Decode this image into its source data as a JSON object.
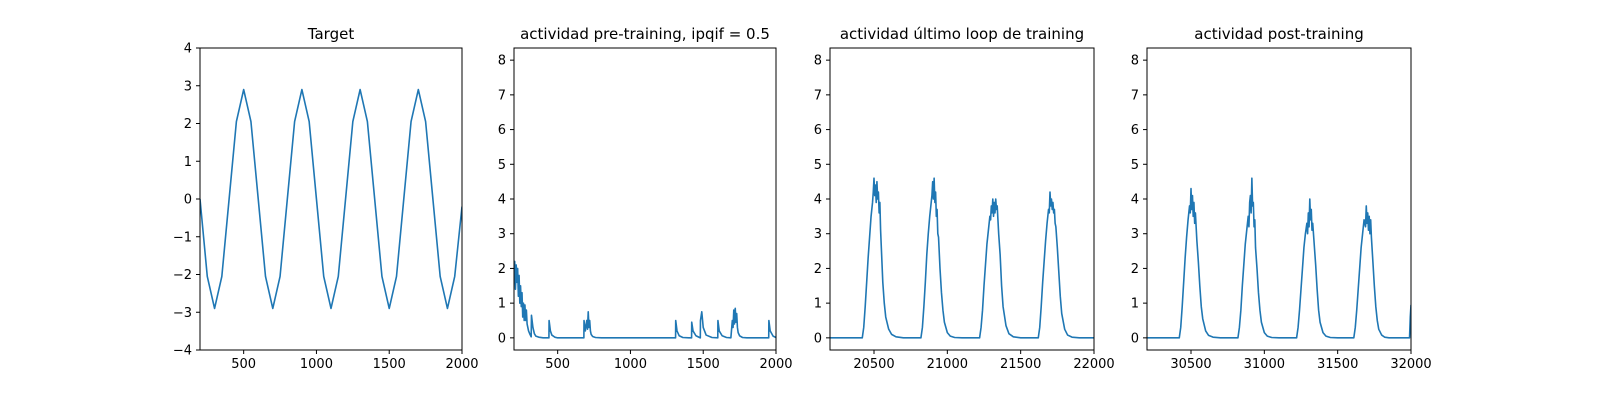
{
  "chart_data": [
    {
      "type": "line",
      "title": "Target",
      "xlabel": "",
      "ylabel": "",
      "xlim": [
        200,
        2000
      ],
      "ylim": [
        -4,
        4
      ],
      "xticks": [
        500,
        1000,
        1500,
        2000
      ],
      "xtick_labels": [
        "500",
        "1000",
        "1500",
        "2000"
      ],
      "yticks": [
        -4,
        -3,
        -2,
        -1,
        0,
        1,
        2,
        3,
        4
      ],
      "ytick_labels": [
        "−4",
        "−3",
        "−2",
        "−1",
        "0",
        "1",
        "2",
        "3",
        "4"
      ],
      "grid": false,
      "color": "#1f77b4",
      "series": [
        {
          "x": [
            200,
            250,
            300,
            350,
            400,
            450,
            500,
            550,
            600,
            650,
            700,
            750,
            800,
            850,
            900,
            950,
            1000,
            1050,
            1100,
            1150,
            1200,
            1250,
            1300,
            1350,
            1400,
            1450,
            1500,
            1550,
            1600,
            1650,
            1700,
            1750,
            1800,
            1850,
            1900,
            1950,
            2000
          ],
          "y": [
            0.0,
            -2.05,
            -2.9,
            -2.05,
            0.0,
            2.05,
            2.9,
            2.05,
            0.0,
            -2.05,
            -2.9,
            -2.05,
            0.0,
            2.05,
            2.9,
            2.05,
            0.0,
            -2.05,
            -2.9,
            -2.05,
            0.0,
            2.05,
            2.9,
            2.05,
            0.0,
            -2.05,
            -2.9,
            -2.05,
            0.0,
            2.05,
            2.9,
            2.05,
            0.0,
            -2.05,
            -2.9,
            -2.05,
            -0.2
          ]
        }
      ]
    },
    {
      "type": "line",
      "title": "actividad pre-training, ipqif = 0.5",
      "xlabel": "",
      "ylabel": "",
      "xlim": [
        200,
        2000
      ],
      "ylim": [
        -0.35,
        8.35
      ],
      "xticks": [
        500,
        1000,
        1500,
        2000
      ],
      "xtick_labels": [
        "500",
        "1000",
        "1500",
        "2000"
      ],
      "yticks": [
        0,
        1,
        2,
        3,
        4,
        5,
        6,
        7,
        8
      ],
      "ytick_labels": [
        "0",
        "1",
        "2",
        "3",
        "4",
        "5",
        "6",
        "7",
        "8"
      ],
      "grid": false,
      "color": "#1f77b4",
      "series": [
        {
          "x": [
            200,
            205,
            210,
            215,
            220,
            225,
            230,
            235,
            240,
            245,
            250,
            255,
            260,
            265,
            270,
            275,
            280,
            285,
            290,
            300,
            310,
            318,
            320,
            330,
            340,
            350,
            370,
            400,
            440,
            441,
            450,
            460,
            480,
            500,
            600,
            680,
            681,
            690,
            700,
            705,
            710,
            715,
            720,
            725,
            730,
            740,
            760,
            800,
            1000,
            1200,
            1310,
            1311,
            1320,
            1335,
            1360,
            1400,
            1420,
            1421,
            1430,
            1450,
            1480,
            1481,
            1490,
            1500,
            1520,
            1560,
            1600,
            1601,
            1610,
            1630,
            1660,
            1690,
            1700,
            1705,
            1710,
            1715,
            1720,
            1725,
            1730,
            1735,
            1740,
            1750,
            1770,
            1800,
            1900,
            1950,
            1951,
            1960,
            1980,
            2000
          ],
          "y": [
            1.7,
            2.2,
            1.4,
            2.1,
            1.6,
            2.0,
            1.2,
            1.8,
            1.0,
            1.5,
            0.9,
            1.3,
            0.6,
            1.0,
            0.5,
            0.95,
            0.5,
            0.8,
            0.4,
            0.2,
            0.1,
            0.03,
            0.65,
            0.3,
            0.12,
            0.05,
            0.02,
            0.0,
            0.0,
            0.5,
            0.2,
            0.08,
            0.02,
            0.0,
            0.0,
            0.0,
            0.5,
            0.2,
            0.5,
            0.25,
            0.75,
            0.3,
            0.5,
            0.2,
            0.1,
            0.04,
            0.01,
            0.0,
            0.0,
            0.0,
            0.0,
            0.5,
            0.2,
            0.06,
            0.01,
            0.0,
            0.0,
            0.45,
            0.2,
            0.06,
            0.0,
            0.5,
            0.75,
            0.3,
            0.08,
            0.01,
            0.0,
            0.5,
            0.2,
            0.06,
            0.01,
            0.0,
            0.5,
            0.3,
            0.8,
            0.4,
            0.85,
            0.45,
            0.7,
            0.3,
            0.15,
            0.06,
            0.01,
            0.0,
            0.0,
            0.0,
            0.5,
            0.2,
            0.05,
            0.01
          ]
        }
      ]
    },
    {
      "type": "line",
      "title": "actividad último loop de training",
      "xlabel": "",
      "ylabel": "",
      "xlim": [
        20200,
        22000
      ],
      "ylim": [
        -0.35,
        8.35
      ],
      "xticks": [
        20500,
        21000,
        21500,
        22000
      ],
      "xtick_labels": [
        "20500",
        "21000",
        "21500",
        "22000"
      ],
      "yticks": [
        0,
        1,
        2,
        3,
        4,
        5,
        6,
        7,
        8
      ],
      "ytick_labels": [
        "0",
        "1",
        "2",
        "3",
        "4",
        "5",
        "6",
        "7",
        "8"
      ],
      "grid": false,
      "color": "#1f77b4",
      "series": [
        {
          "x": [
            20200,
            20420,
            20430,
            20440,
            20450,
            20460,
            20470,
            20480,
            20490,
            20495,
            20500,
            20505,
            20510,
            20515,
            20520,
            20525,
            20530,
            20535,
            20540,
            20545,
            20550,
            20560,
            20570,
            20580,
            20600,
            20620,
            20650,
            20700,
            20820,
            20830,
            20840,
            20850,
            20860,
            20870,
            20880,
            20890,
            20895,
            20900,
            20905,
            20910,
            20915,
            20920,
            20925,
            20930,
            20935,
            20940,
            20950,
            20960,
            20970,
            20980,
            21000,
            21020,
            21050,
            21100,
            21220,
            21230,
            21240,
            21250,
            21260,
            21270,
            21280,
            21290,
            21295,
            21300,
            21305,
            21310,
            21315,
            21320,
            21325,
            21330,
            21335,
            21340,
            21350,
            21360,
            21370,
            21380,
            21400,
            21420,
            21450,
            21500,
            21620,
            21630,
            21640,
            21650,
            21660,
            21670,
            21680,
            21690,
            21695,
            21700,
            21705,
            21710,
            21715,
            21720,
            21725,
            21730,
            21735,
            21740,
            21750,
            21760,
            21770,
            21780,
            21800,
            21820,
            21850,
            21900,
            22000
          ],
          "y": [
            0.0,
            0.0,
            0.3,
            0.9,
            1.6,
            2.3,
            2.9,
            3.5,
            3.9,
            4.2,
            4.6,
            4.1,
            4.4,
            3.9,
            4.5,
            4.0,
            4.2,
            3.6,
            3.9,
            3.1,
            2.6,
            1.6,
            1.0,
            0.6,
            0.25,
            0.1,
            0.03,
            0.0,
            0.0,
            0.3,
            0.9,
            1.6,
            2.4,
            3.0,
            3.5,
            3.9,
            4.1,
            4.5,
            4.0,
            4.6,
            3.9,
            4.2,
            3.5,
            3.7,
            3.0,
            2.9,
            2.0,
            1.3,
            0.8,
            0.45,
            0.15,
            0.05,
            0.01,
            0.0,
            0.0,
            0.3,
            0.8,
            1.5,
            2.1,
            2.7,
            3.1,
            3.5,
            3.4,
            3.8,
            3.6,
            4.0,
            3.5,
            3.9,
            3.6,
            4.0,
            3.7,
            3.8,
            3.0,
            2.4,
            1.5,
            0.9,
            0.35,
            0.12,
            0.03,
            0.0,
            0.0,
            0.3,
            0.9,
            1.6,
            2.2,
            2.8,
            3.3,
            3.7,
            3.6,
            4.2,
            3.8,
            4.0,
            3.7,
            3.9,
            3.6,
            3.7,
            3.3,
            3.2,
            2.6,
            1.9,
            1.2,
            0.7,
            0.25,
            0.08,
            0.02,
            0.0,
            0.0
          ]
        }
      ]
    },
    {
      "type": "line",
      "title": "actividad post-training",
      "xlabel": "",
      "ylabel": "",
      "xlim": [
        30200,
        32000
      ],
      "ylim": [
        -0.35,
        8.35
      ],
      "xticks": [
        30500,
        31000,
        31500,
        32000
      ],
      "xtick_labels": [
        "30500",
        "31000",
        "31500",
        "32000"
      ],
      "yticks": [
        0,
        1,
        2,
        3,
        4,
        5,
        6,
        7,
        8
      ],
      "ytick_labels": [
        "0",
        "1",
        "2",
        "3",
        "4",
        "5",
        "6",
        "7",
        "8"
      ],
      "grid": false,
      "color": "#1f77b4",
      "series": [
        {
          "x": [
            30200,
            30420,
            30430,
            30440,
            30450,
            30460,
            30470,
            30480,
            30490,
            30495,
            30500,
            30505,
            30510,
            30515,
            30520,
            30525,
            30530,
            30540,
            30550,
            30560,
            30570,
            30580,
            30600,
            30620,
            30650,
            30700,
            30820,
            30830,
            30840,
            30850,
            30860,
            30870,
            30880,
            30890,
            30895,
            30900,
            30905,
            30910,
            30915,
            30920,
            30925,
            30930,
            30935,
            30940,
            30950,
            30960,
            30970,
            30980,
            31000,
            31020,
            31050,
            31100,
            31220,
            31230,
            31240,
            31250,
            31260,
            31270,
            31280,
            31290,
            31295,
            31300,
            31305,
            31310,
            31315,
            31320,
            31325,
            31330,
            31340,
            31350,
            31360,
            31370,
            31380,
            31400,
            31420,
            31450,
            31500,
            31610,
            31620,
            31630,
            31640,
            31650,
            31660,
            31670,
            31680,
            31690,
            31695,
            31700,
            31705,
            31710,
            31715,
            31720,
            31725,
            31730,
            31740,
            31750,
            31760,
            31770,
            31780,
            31800,
            31820,
            31850,
            31900,
            31990,
            31995,
            32000
          ],
          "y": [
            0.0,
            0.0,
            0.3,
            0.9,
            1.6,
            2.3,
            2.9,
            3.4,
            3.8,
            3.6,
            4.3,
            3.7,
            4.1,
            3.5,
            3.9,
            3.3,
            3.6,
            2.8,
            2.2,
            1.5,
            0.9,
            0.55,
            0.2,
            0.07,
            0.02,
            0.0,
            0.0,
            0.3,
            0.8,
            1.5,
            2.1,
            2.7,
            3.1,
            3.5,
            3.2,
            3.9,
            4.1,
            3.6,
            4.6,
            3.8,
            3.9,
            3.2,
            3.4,
            2.6,
            2.0,
            1.3,
            0.8,
            0.45,
            0.15,
            0.05,
            0.01,
            0.0,
            0.0,
            0.3,
            0.8,
            1.4,
            2.0,
            2.6,
            3.0,
            3.3,
            3.0,
            3.6,
            3.2,
            4.0,
            3.4,
            3.7,
            3.1,
            3.3,
            2.7,
            2.1,
            1.4,
            0.8,
            0.45,
            0.15,
            0.05,
            0.01,
            0.0,
            0.0,
            0.3,
            0.8,
            1.4,
            2.0,
            2.6,
            3.0,
            3.4,
            3.2,
            3.8,
            3.3,
            3.6,
            3.1,
            3.5,
            3.0,
            3.4,
            2.9,
            2.2,
            1.5,
            0.9,
            0.5,
            0.25,
            0.08,
            0.02,
            0.0,
            0.0,
            0.0,
            0.6,
            0.95
          ]
        }
      ]
    }
  ]
}
